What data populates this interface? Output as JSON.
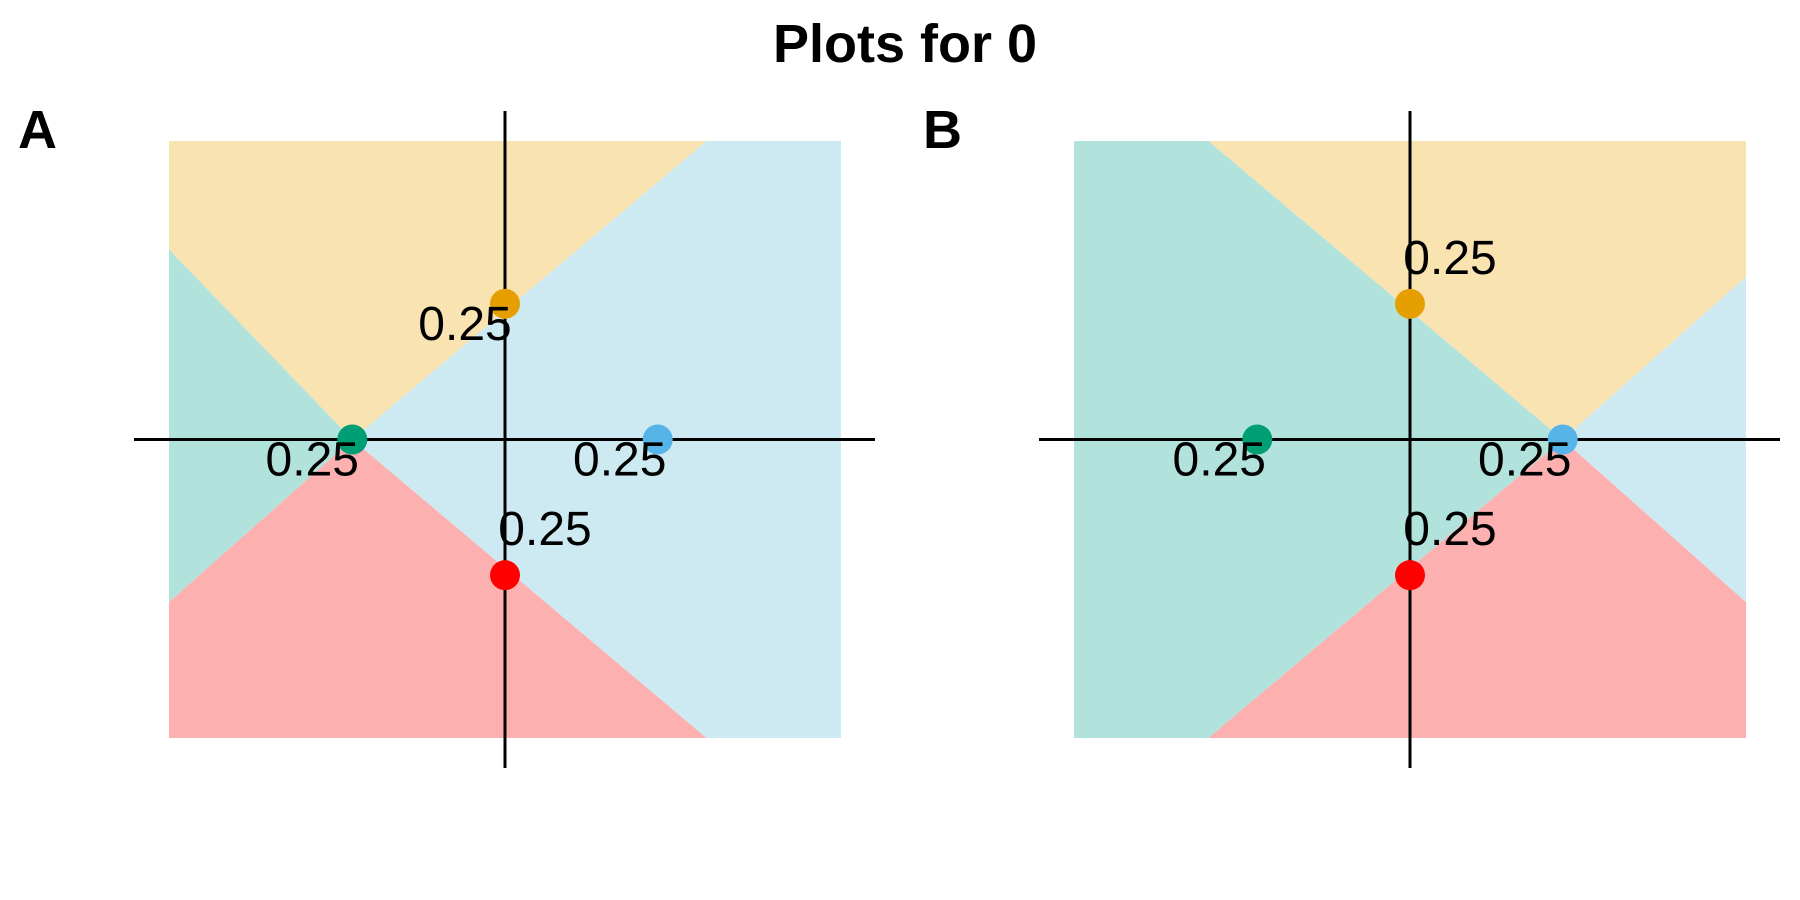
{
  "figure": {
    "title": "Plots for 0"
  },
  "colors": {
    "green": "#009E73",
    "orange": "#E69F00",
    "blue": "#56B4E9",
    "red": "#FF0000",
    "region_green": "#B2E2DC",
    "region_orange": "#F9E3B1",
    "region_blue": "#CDEAF2",
    "region_red": "#FDB0B0",
    "axis": "#000000"
  },
  "chart_data": [
    {
      "type": "scatter",
      "panel": "A",
      "title": "",
      "xlim": [
        -1.1,
        1.1
      ],
      "ylim": [
        -1.1,
        1.1
      ],
      "grid": false,
      "axes_through_origin": true,
      "points": [
        {
          "x": -0.5,
          "y": 0,
          "color": "green",
          "label": "0.25"
        },
        {
          "x": 0,
          "y": 0.5,
          "color": "orange",
          "label": "0.25"
        },
        {
          "x": 0.5,
          "y": 0,
          "color": "blue",
          "label": "0.25"
        },
        {
          "x": 0,
          "y": -0.5,
          "color": "red",
          "label": "0.25"
        }
      ],
      "regions": [
        {
          "color": "region_orange",
          "polygon": [
            [
              -1.1,
              0.7
            ],
            [
              -0.5,
              0
            ],
            [
              0.66,
              1.1
            ],
            [
              -1.1,
              1.1
            ]
          ]
        },
        {
          "color": "region_green",
          "polygon": [
            [
              -1.1,
              0.7
            ],
            [
              -0.5,
              0
            ],
            [
              -1.1,
              -0.6
            ]
          ]
        },
        {
          "color": "region_red",
          "polygon": [
            [
              -1.1,
              -0.6
            ],
            [
              -0.5,
              0
            ],
            [
              0.66,
              -1.1
            ],
            [
              -1.1,
              -1.1
            ]
          ]
        },
        {
          "color": "region_blue",
          "polygon": [
            [
              -0.5,
              0
            ],
            [
              0.66,
              1.1
            ],
            [
              1.1,
              1.1
            ],
            [
              1.1,
              -1.1
            ],
            [
              0.66,
              -1.1
            ]
          ]
        }
      ]
    },
    {
      "type": "scatter",
      "panel": "B",
      "title": "",
      "xlim": [
        -1.1,
        1.1
      ],
      "ylim": [
        -1.1,
        1.1
      ],
      "grid": false,
      "axes_through_origin": true,
      "points": [
        {
          "x": -0.5,
          "y": 0,
          "color": "green",
          "label": "0.25"
        },
        {
          "x": 0,
          "y": 0.5,
          "color": "orange",
          "label": "0.25"
        },
        {
          "x": 0.5,
          "y": 0,
          "color": "blue",
          "label": "0.25"
        },
        {
          "x": 0,
          "y": -0.5,
          "color": "red",
          "label": "0.25"
        }
      ],
      "regions": [
        {
          "color": "region_green",
          "polygon": [
            [
              -1.1,
              1.1
            ],
            [
              -0.66,
              1.1
            ],
            [
              0.5,
              0
            ],
            [
              -0.66,
              -1.1
            ],
            [
              -1.1,
              -1.1
            ]
          ]
        },
        {
          "color": "region_orange",
          "polygon": [
            [
              -0.66,
              1.1
            ],
            [
              1.1,
              1.1
            ],
            [
              1.1,
              0.6
            ],
            [
              0.5,
              0
            ]
          ]
        },
        {
          "color": "region_blue",
          "polygon": [
            [
              0.5,
              0
            ],
            [
              1.1,
              0.6
            ],
            [
              1.1,
              -0.6
            ]
          ]
        },
        {
          "color": "region_red",
          "polygon": [
            [
              0.5,
              0
            ],
            [
              1.1,
              -0.6
            ],
            [
              1.1,
              -1.1
            ],
            [
              -0.66,
              -1.1
            ]
          ]
        }
      ]
    }
  ]
}
